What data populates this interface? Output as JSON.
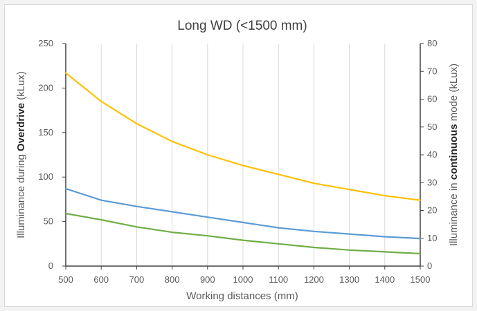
{
  "chart_data": {
    "type": "line",
    "title": "Long WD (<1500 mm)",
    "xlabel": "Working distances (mm)",
    "ylabel": {
      "prefix": "Illuminance during ",
      "emphasis": "Overdrive",
      "suffix": " (kLux)"
    },
    "y2label": {
      "prefix": "Illuminance in ",
      "emphasis": "continuous",
      "suffix": " mode (kLux)"
    },
    "x": [
      500,
      600,
      700,
      800,
      900,
      1000,
      1100,
      1200,
      1300,
      1400,
      1500
    ],
    "xlim": [
      500,
      1500
    ],
    "ylim": [
      0,
      250
    ],
    "y2lim": [
      0,
      80
    ],
    "x_ticks": [
      "500",
      "600",
      "700",
      "800",
      "900",
      "1000",
      "1100",
      "1200",
      "1300",
      "1400",
      "1500"
    ],
    "y_ticks": [
      "0",
      "50",
      "100",
      "150",
      "200",
      "250"
    ],
    "y2_ticks": [
      "0",
      "10",
      "20",
      "30",
      "40",
      "50",
      "60",
      "70",
      "80"
    ],
    "grid": {
      "vertical": true,
      "horizontal": false
    },
    "series": [
      {
        "axis": "left",
        "color": "#ffc000",
        "values": [
          217,
          185,
          160,
          140,
          125,
          113,
          103,
          93,
          86,
          79,
          74
        ]
      },
      {
        "axis": "left",
        "color": "#5b9bd5",
        "values": [
          87,
          74,
          67,
          61,
          55,
          49,
          43,
          39,
          36,
          33,
          31
        ]
      },
      {
        "axis": "left",
        "color": "#70ad47",
        "values": [
          59,
          52,
          44,
          38,
          34,
          29,
          25,
          21,
          18,
          16,
          14
        ]
      }
    ]
  }
}
